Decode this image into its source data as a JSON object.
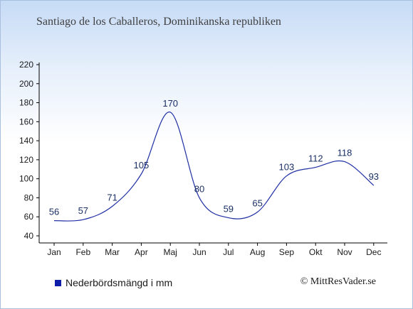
{
  "chart_data": {
    "type": "line",
    "title": "Santiago de los Caballeros, Dominikanska republiken",
    "categories": [
      "Jan",
      "Feb",
      "Mar",
      "Apr",
      "Maj",
      "Jun",
      "Jul",
      "Aug",
      "Sep",
      "Okt",
      "Nov",
      "Dec"
    ],
    "series": [
      {
        "name": "Nederbördsmängd i mm",
        "values": [
          56,
          57,
          71,
          105,
          170,
          80,
          59,
          65,
          103,
          112,
          118,
          93
        ]
      }
    ],
    "ylim": [
      40,
      220
    ],
    "yticks": [
      40,
      60,
      80,
      100,
      120,
      140,
      160,
      180,
      200,
      220
    ],
    "xlabel": "",
    "ylabel": "",
    "legend": "bottom-left",
    "grid": false,
    "line_color": "#1f2fa3",
    "legend_color": "#0e1ca8"
  },
  "credit": "© MittResVader.se"
}
